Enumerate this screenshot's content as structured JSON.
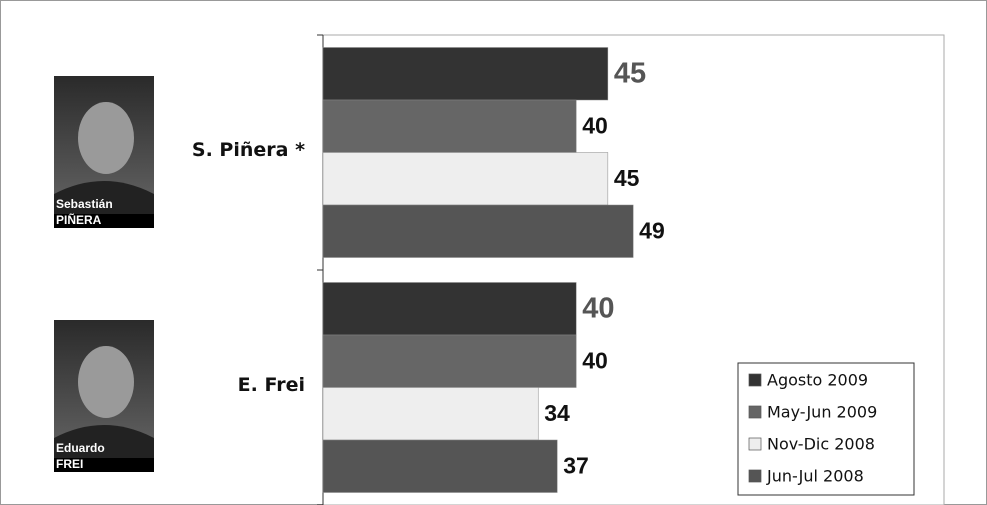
{
  "chart_data": {
    "type": "hbar",
    "categories": [
      "S. Piñera *",
      "E. Frei"
    ],
    "series": [
      {
        "name": "Agosto 2009",
        "color": "#333333",
        "label_color": "#555555",
        "values": [
          45,
          40
        ]
      },
      {
        "name": "May-Jun 2009",
        "color": "#666666",
        "label_color": "#111111",
        "values": [
          40,
          40
        ]
      },
      {
        "name": "Nov-Dic 2008",
        "color": "#eeeeee",
        "label_color": "#111111",
        "values": [
          45,
          34
        ]
      },
      {
        "name": "Jun-Jul 2008",
        "color": "#555555",
        "label_color": "#111111",
        "values": [
          49,
          37
        ]
      }
    ],
    "xlim": [
      0,
      100
    ],
    "legend": "bottom-right",
    "photos": [
      {
        "first": "Sebastián",
        "last": "PIÑERA"
      },
      {
        "first": "Eduardo",
        "last": "FREI"
      }
    ]
  }
}
